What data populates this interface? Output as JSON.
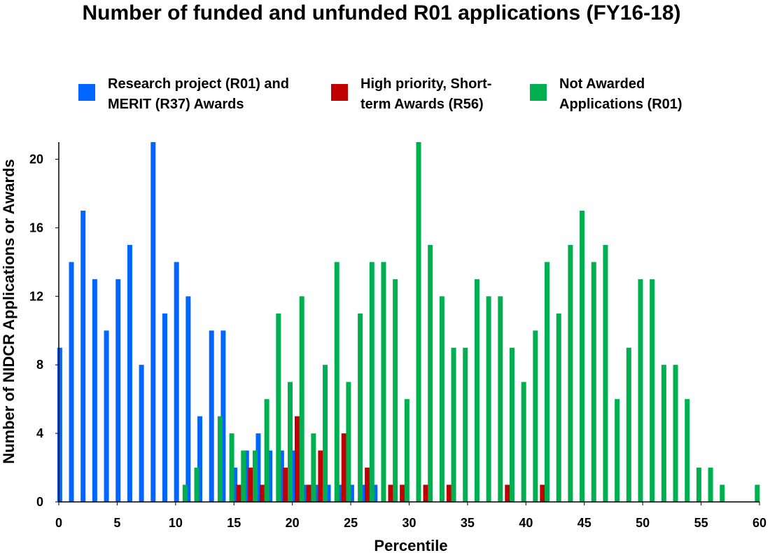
{
  "chart_data": {
    "type": "bar",
    "title": "Number of funded and unfunded R01 applications (FY16-18)",
    "xlabel": "Percentile",
    "ylabel": "Number of NIDCR Applications or Awards",
    "xlim": [
      0,
      60
    ],
    "ylim": [
      0,
      21
    ],
    "x_ticks": [
      "0",
      "5",
      "10",
      "15",
      "20",
      "25",
      "30",
      "35",
      "40",
      "45",
      "50",
      "55",
      "60"
    ],
    "y_ticks": [
      "0",
      "4",
      "8",
      "12",
      "16",
      "20"
    ],
    "grid": false,
    "legend_position": "top",
    "series": [
      {
        "name": "Research project (R01) and MERIT (R37) Awards",
        "legend_lines": [
          "Research project (R01) and",
          "MERIT (R37) Awards"
        ],
        "color": "#0066FF",
        "x": [
          0,
          1,
          2,
          3,
          4,
          5,
          6,
          7,
          8,
          9,
          10,
          11,
          12,
          13,
          14,
          15,
          16,
          17,
          18,
          19,
          20,
          21,
          22,
          23,
          24,
          25,
          26,
          27
        ],
        "values": [
          9,
          14,
          17,
          13,
          10,
          13,
          15,
          8,
          21,
          11,
          14,
          12,
          5,
          10,
          10,
          2,
          3,
          4,
          3,
          3,
          3,
          1,
          1,
          1,
          1,
          1,
          1,
          1
        ]
      },
      {
        "name": "High priority, Short-term Awards (R56)",
        "legend_lines": [
          "High priority, Short-",
          "term Awards (R56)"
        ],
        "color": "#C00000",
        "x": [
          15,
          16,
          17,
          19,
          20,
          21,
          22,
          24,
          26,
          28,
          29,
          31,
          33,
          38,
          41
        ],
        "values": [
          1,
          2,
          1,
          2,
          5,
          1,
          3,
          4,
          2,
          1,
          1,
          1,
          1,
          1,
          1
        ]
      },
      {
        "name": "Not Awarded Applications (R01)",
        "legend_lines": [
          "Not Awarded",
          "Applications (R01)"
        ],
        "color": "#00B050",
        "x": [
          10,
          11,
          13,
          14,
          15,
          16,
          17,
          18,
          19,
          20,
          21,
          22,
          23,
          24,
          25,
          26,
          27,
          28,
          29,
          30,
          31,
          32,
          33,
          34,
          35,
          36,
          37,
          38,
          39,
          40,
          41,
          42,
          43,
          44,
          45,
          46,
          47,
          48,
          49,
          50,
          51,
          52,
          53,
          54,
          55,
          56,
          59
        ],
        "values": [
          1,
          2,
          5,
          4,
          3,
          3,
          6,
          11,
          7,
          12,
          4,
          8,
          14,
          7,
          11,
          14,
          14,
          13,
          6,
          21,
          15,
          12,
          9,
          9,
          13,
          12,
          12,
          9,
          7,
          10,
          14,
          11,
          15,
          17,
          14,
          15,
          6,
          9,
          13,
          13,
          8,
          8,
          6,
          2,
          2,
          1,
          1
        ]
      }
    ]
  }
}
